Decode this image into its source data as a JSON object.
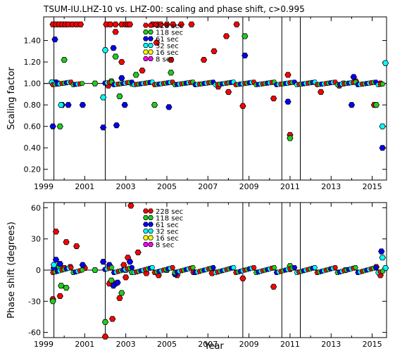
{
  "title": "TSUM-IU.LHZ-10 vs. LHZ-00: scaling and phase shift, c>0.995",
  "xlabel": "Year",
  "marker_colors": {
    "228 sec": "#ff0000",
    "118 sec": "#22cc22",
    "61 sec": "#0000ff",
    "32 sec": "#00ffff",
    "16 sec": "#ffff00",
    "8 sec": "#ff00ff"
  },
  "chart_data": [
    {
      "type": "scatter",
      "ylabel": "Scaling factor",
      "xlim": [
        1999,
        2015.7
      ],
      "ylim": [
        0.1,
        1.62
      ],
      "xticks": [
        1999,
        2001,
        2003,
        2005,
        2007,
        2009,
        2011,
        2013,
        2015
      ],
      "yticks": [
        0.2,
        0.4,
        0.6,
        0.8,
        1.0,
        1.2,
        1.4
      ],
      "ytick_labels": [
        "0.20",
        "0.40",
        "0.60",
        "0.80",
        "1.00",
        "1.20",
        "1.40"
      ],
      "reference_line": 1.0,
      "vlines": [
        1999.5,
        2002.0,
        2008.7,
        2010.6,
        2011.5
      ],
      "legend": [
        "228 sec",
        "118 sec",
        "61 sec",
        "32 sec",
        "16 sec",
        "8 sec"
      ],
      "legend_position": "top-center",
      "series": [
        {
          "name": "228 sec",
          "points": [
            [
              1999.45,
              1.55
            ],
            [
              1999.6,
              1.55
            ],
            [
              1999.75,
              1.55
            ],
            [
              1999.9,
              1.55
            ],
            [
              2000.05,
              1.55
            ],
            [
              2000.2,
              1.55
            ],
            [
              2000.4,
              1.55
            ],
            [
              2000.6,
              1.55
            ],
            [
              2000.8,
              1.55
            ],
            [
              2002.05,
              1.55
            ],
            [
              2002.25,
              1.55
            ],
            [
              2002.5,
              1.55
            ],
            [
              2002.8,
              1.55
            ],
            [
              2003.0,
              1.55
            ],
            [
              2003.1,
              1.55
            ],
            [
              2003.2,
              1.55
            ],
            [
              2003.8,
              1.12
            ],
            [
              2004.3,
              1.55
            ],
            [
              2004.5,
              1.55
            ],
            [
              2004.7,
              1.55
            ],
            [
              2005.0,
              1.55
            ],
            [
              2005.3,
              1.55
            ],
            [
              2005.7,
              1.55
            ],
            [
              2006.2,
              1.55
            ],
            [
              2006.8,
              1.22
            ],
            [
              2007.3,
              1.3
            ],
            [
              2007.9,
              1.44
            ],
            [
              2008.4,
              1.55
            ],
            [
              2008.7,
              0.79
            ],
            [
              2008.0,
              0.92
            ],
            [
              2010.2,
              0.86
            ],
            [
              2010.9,
              1.08
            ],
            [
              2011.0,
              0.52
            ],
            [
              2012.5,
              0.92
            ],
            [
              2015.1,
              0.8
            ],
            [
              2015.4,
              1.0
            ],
            [
              2002.8,
              1.2
            ],
            [
              2004.5,
              1.38
            ],
            [
              2005.2,
              1.22
            ],
            [
              2002.5,
              1.48
            ],
            [
              2002.15,
              0.98
            ],
            [
              2007.5,
              0.97
            ],
            [
              2013.4,
              0.98
            ],
            [
              2014.2,
              1.02
            ]
          ]
        },
        {
          "name": "118 sec",
          "points": [
            [
              1999.8,
              0.6
            ],
            [
              2000.0,
              1.22
            ],
            [
              2002.5,
              1.25
            ],
            [
              2002.7,
              0.88
            ],
            [
              2003.5,
              1.08
            ],
            [
              2004.4,
              0.8
            ],
            [
              2005.2,
              1.1
            ],
            [
              2008.8,
              1.44
            ],
            [
              2011.0,
              0.49
            ],
            [
              2015.2,
              0.8
            ],
            [
              1999.7,
              1.0
            ],
            [
              2001.5,
              1.0
            ],
            [
              2002.3,
              1.02
            ]
          ]
        },
        {
          "name": "61 sec",
          "points": [
            [
              1999.45,
              0.6
            ],
            [
              1999.55,
              1.41
            ],
            [
              1999.9,
              0.8
            ],
            [
              2000.2,
              0.8
            ],
            [
              2000.9,
              0.8
            ],
            [
              2001.9,
              0.59
            ],
            [
              2002.4,
              1.33
            ],
            [
              2002.55,
              0.61
            ],
            [
              2002.8,
              1.05
            ],
            [
              2002.95,
              0.8
            ],
            [
              2005.1,
              0.78
            ],
            [
              2008.8,
              1.26
            ],
            [
              2010.9,
              0.83
            ],
            [
              2014.0,
              0.8
            ],
            [
              2014.1,
              1.06
            ],
            [
              2015.5,
              0.4
            ],
            [
              1999.6,
              1.01
            ],
            [
              2003.3,
              1.0
            ]
          ]
        },
        {
          "name": "32 sec",
          "points": [
            [
              1999.4,
              1.01
            ],
            [
              1999.85,
              0.8
            ],
            [
              2001.9,
              0.87
            ],
            [
              2002.0,
              1.31
            ],
            [
              2003.3,
              1.0
            ],
            [
              2015.5,
              0.6
            ],
            [
              2015.65,
              1.19
            ],
            [
              2013.6,
              1.0
            ]
          ]
        },
        {
          "name": "16 sec",
          "points": []
        },
        {
          "name": "8 sec",
          "points": []
        }
      ]
    },
    {
      "type": "scatter",
      "ylabel": "Phase shift (degrees)",
      "xlim": [
        1999,
        2015.7
      ],
      "ylim": [
        -65,
        65
      ],
      "xticks": [
        1999,
        2001,
        2003,
        2005,
        2007,
        2009,
        2011,
        2013,
        2015
      ],
      "yticks": [
        -60,
        -30,
        0,
        30,
        60
      ],
      "reference_line": 0,
      "vlines": [
        1999.5,
        2002.0,
        2008.7,
        2010.6,
        2011.5
      ],
      "legend": [
        "228 sec",
        "118 sec",
        "61 sec",
        "32 sec",
        "16 sec",
        "8 sec"
      ],
      "legend_position": "top-center",
      "series": [
        {
          "name": "228 sec",
          "points": [
            [
              1999.45,
              -28
            ],
            [
              1999.6,
              37
            ],
            [
              1999.8,
              -25
            ],
            [
              2000.1,
              27
            ],
            [
              2000.6,
              23
            ],
            [
              2000.0,
              2
            ],
            [
              2000.3,
              3
            ],
            [
              2001.0,
              2
            ],
            [
              2002.0,
              -64
            ],
            [
              2002.2,
              -13
            ],
            [
              2002.35,
              -47
            ],
            [
              2002.5,
              -13
            ],
            [
              2002.7,
              -27
            ],
            [
              2002.9,
              5
            ],
            [
              2003.1,
              12
            ],
            [
              2003.25,
              62
            ],
            [
              2003.6,
              17
            ],
            [
              2004.0,
              -3
            ],
            [
              2004.6,
              -5
            ],
            [
              2005.5,
              -5
            ],
            [
              2006.3,
              -2
            ],
            [
              2007.2,
              -3
            ],
            [
              2008.7,
              -8
            ],
            [
              2010.2,
              -16
            ],
            [
              2011.0,
              1
            ],
            [
              2015.2,
              3
            ],
            [
              2015.4,
              -5
            ],
            [
              2003.0,
              -7
            ]
          ]
        },
        {
          "name": "118 sec",
          "points": [
            [
              1999.45,
              -30
            ],
            [
              1999.7,
              2
            ],
            [
              1999.85,
              -15
            ],
            [
              2000.1,
              -17
            ],
            [
              2002.0,
              -50
            ],
            [
              2002.3,
              -10
            ],
            [
              2002.8,
              -22
            ],
            [
              2003.3,
              -2
            ],
            [
              2011.0,
              4
            ],
            [
              2001.5,
              0
            ],
            [
              2005.0,
              0
            ]
          ]
        },
        {
          "name": "61 sec",
          "points": [
            [
              1999.5,
              2
            ],
            [
              1999.6,
              10
            ],
            [
              1999.8,
              6
            ],
            [
              2000.9,
              5
            ],
            [
              2001.9,
              8
            ],
            [
              2002.2,
              5
            ],
            [
              2002.4,
              -15
            ],
            [
              2002.6,
              -12
            ],
            [
              2003.2,
              8
            ],
            [
              2005.4,
              -4
            ],
            [
              2015.45,
              18
            ]
          ]
        },
        {
          "name": "32 sec",
          "points": [
            [
              1999.5,
              5
            ],
            [
              2003.0,
              0
            ],
            [
              2015.5,
              12
            ],
            [
              2015.65,
              2
            ],
            [
              2013.7,
              0
            ]
          ]
        },
        {
          "name": "16 sec",
          "points": []
        },
        {
          "name": "8 sec",
          "points": []
        }
      ]
    }
  ]
}
